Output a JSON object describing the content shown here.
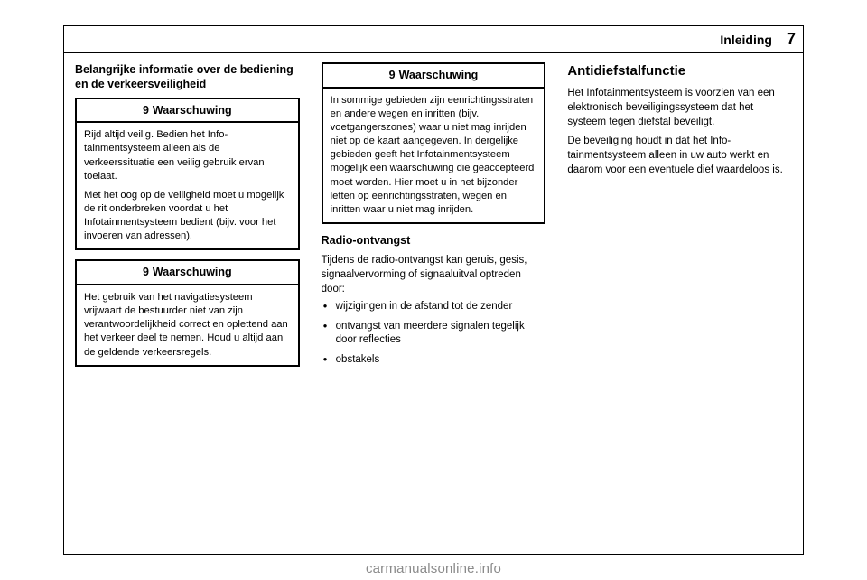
{
  "header": {
    "title": "Inleiding",
    "page_number": "7"
  },
  "col1": {
    "subtitle": "Belangrijke informatie over de bediening en de verkeersveiligheid",
    "warning1": {
      "icon": "9",
      "label": "Waarschuwing",
      "p1": "Rijd altijd veilig. Bedien het Info­tainmentsysteem alleen als de verkeerssituatie een veilig gebruik ervan toelaat.",
      "p2": "Met het oog op de veiligheid moet u mogelijk de rit onderbreken voor­dat u het Infotainmentsysteem bedient (bijv. voor het invoeren van adressen)."
    },
    "warning2": {
      "icon": "9",
      "label": "Waarschuwing",
      "p1": "Het gebruik van het navigatiesys­teem vrijwaart de bestuurder niet van zijn verantwoordelijkheid correct en oplettend aan het verkeer deel te nemen. Houd u altijd aan de geldende verkeersre­gels."
    }
  },
  "col2": {
    "warning3": {
      "icon": "9",
      "label": "Waarschuwing",
      "p1": "In sommige gebieden zijn eenrich­tingsstraten en andere wegen en inritten (bijv. voetgangerszones) waar u niet mag inrijden niet op de kaart aangegeven. In dergelijke gebieden geeft het Infotainment­systeem mogelijk een waarschu­wing die geaccepteerd moet worden. Hier moet u in het bijzon­der letten op eenrichtingsstraten, wegen en inritten waar u niet mag inrijden."
    },
    "radio_title": "Radio-ontvangst",
    "radio_intro": "Tijdens de radio-ontvangst kan geruis, gesis, signaalvervorming of signaal­uitval optreden door:",
    "bullets": [
      "wijzigingen in de afstand tot de zender",
      "ontvangst van meerdere signa­len tegelijk door reflecties",
      "obstakels"
    ]
  },
  "col3": {
    "title": "Antidiefstalfunctie",
    "p1": "Het Infotainmentsysteem is voorzien van een elektronisch beveiligingssys­teem dat het systeem tegen diefstal beveiligt.",
    "p2": "De beveiliging houdt in dat het Info­tainmentsysteem alleen in uw auto werkt en daarom voor een eventuele dief waardeloos is."
  },
  "footer_url": "carmanualsonline.info"
}
